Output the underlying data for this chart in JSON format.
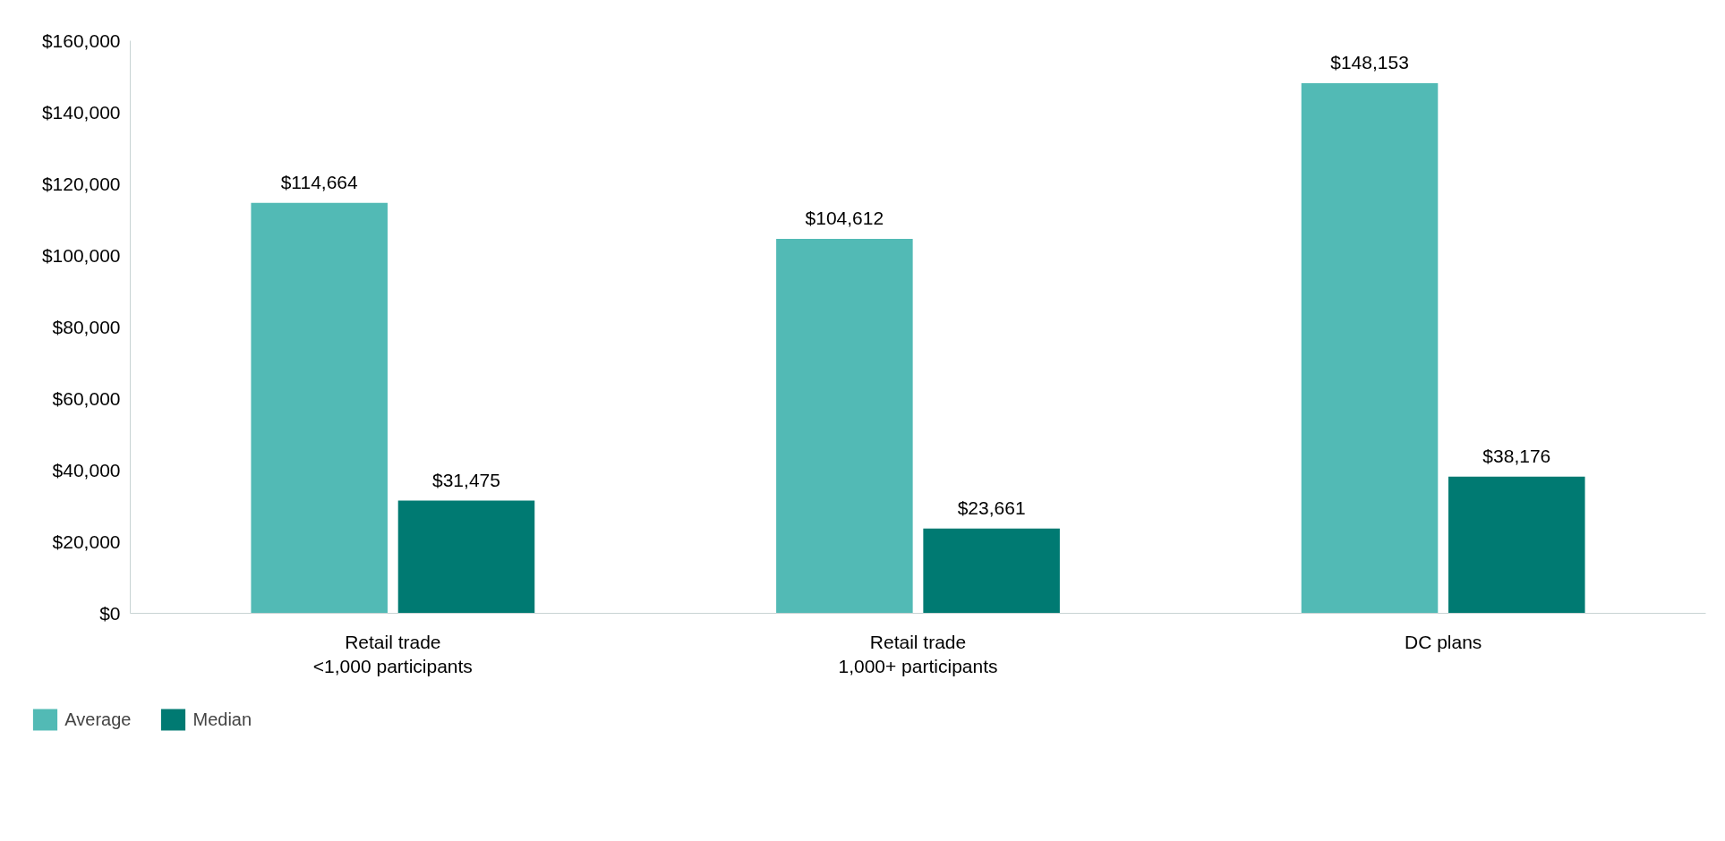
{
  "chart_data": {
    "type": "bar",
    "categories": [
      "Retail trade\n<1,000 participants",
      "Retail trade\n1,000+ participants",
      "DC plans"
    ],
    "series": [
      {
        "name": "Average",
        "color": "#52bab5",
        "values": [
          114664,
          104612,
          148153
        ],
        "value_labels": [
          "$114,664",
          "$104,612",
          "$148,153"
        ]
      },
      {
        "name": "Median",
        "color": "#007a72",
        "values": [
          31475,
          23661,
          38176
        ],
        "value_labels": [
          "$31,475",
          "$23,661",
          "$38,176"
        ]
      }
    ],
    "ylim": [
      0,
      160000
    ],
    "yticks": [
      {
        "value": 0,
        "label": "$0"
      },
      {
        "value": 20000,
        "label": "$20,000"
      },
      {
        "value": 40000,
        "label": "$40,000"
      },
      {
        "value": 60000,
        "label": "$60,000"
      },
      {
        "value": 80000,
        "label": "$80,000"
      },
      {
        "value": 100000,
        "label": "$100,000"
      },
      {
        "value": 120000,
        "label": "$120,000"
      },
      {
        "value": 140000,
        "label": "$140,000"
      },
      {
        "value": 160000,
        "label": "$160,000"
      }
    ],
    "grid": false,
    "legend": "bottom left"
  }
}
